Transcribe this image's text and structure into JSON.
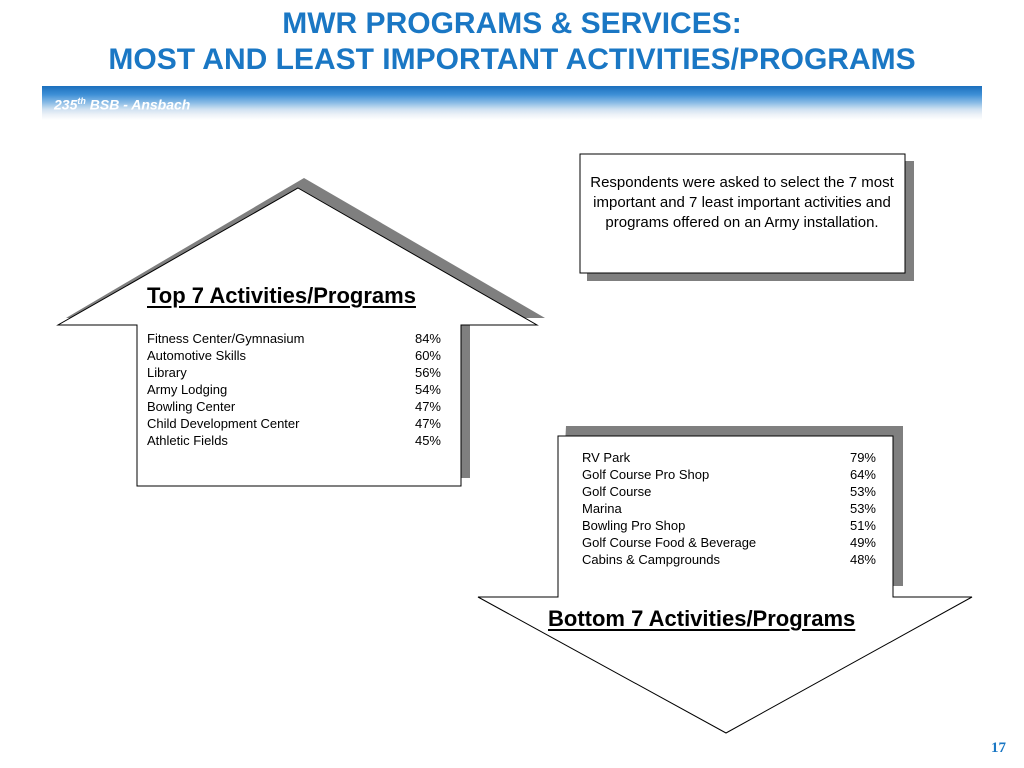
{
  "header": {
    "title_line1": "MWR PROGRAMS & SERVICES:",
    "title_line2": "MOST AND LEAST IMPORTANT ACTIVITIES/PROGRAMS",
    "banner_prefix": "235",
    "banner_sup": "th",
    "banner_suffix": " BSB - Ansbach"
  },
  "note": {
    "text": "Respondents were asked to select the 7 most important and 7 least important activities and programs offered on an Army installation."
  },
  "top": {
    "heading": "Top 7 Activities/Programs",
    "items": [
      {
        "name": "Fitness Center/Gymnasium",
        "pct": "84%"
      },
      {
        "name": "Automotive Skills",
        "pct": "60%"
      },
      {
        "name": "Library",
        "pct": "56%"
      },
      {
        "name": "Army Lodging",
        "pct": "54%"
      },
      {
        "name": "Bowling Center",
        "pct": "47%"
      },
      {
        "name": "Child Development Center",
        "pct": "47%"
      },
      {
        "name": "Athletic Fields",
        "pct": "45%"
      }
    ]
  },
  "bottom": {
    "heading": "Bottom 7 Activities/Programs",
    "items": [
      {
        "name": "RV Park",
        "pct": "79%"
      },
      {
        "name": "Golf Course Pro Shop",
        "pct": "64%"
      },
      {
        "name": "Golf Course",
        "pct": "53%"
      },
      {
        "name": "Marina",
        "pct": "53%"
      },
      {
        "name": "Bowling Pro Shop",
        "pct": "51%"
      },
      {
        "name": "Golf Course Food & Beverage",
        "pct": "49%"
      },
      {
        "name": "Cabins & Campgrounds",
        "pct": "48%"
      }
    ]
  },
  "footer": {
    "page_number": "17"
  }
}
